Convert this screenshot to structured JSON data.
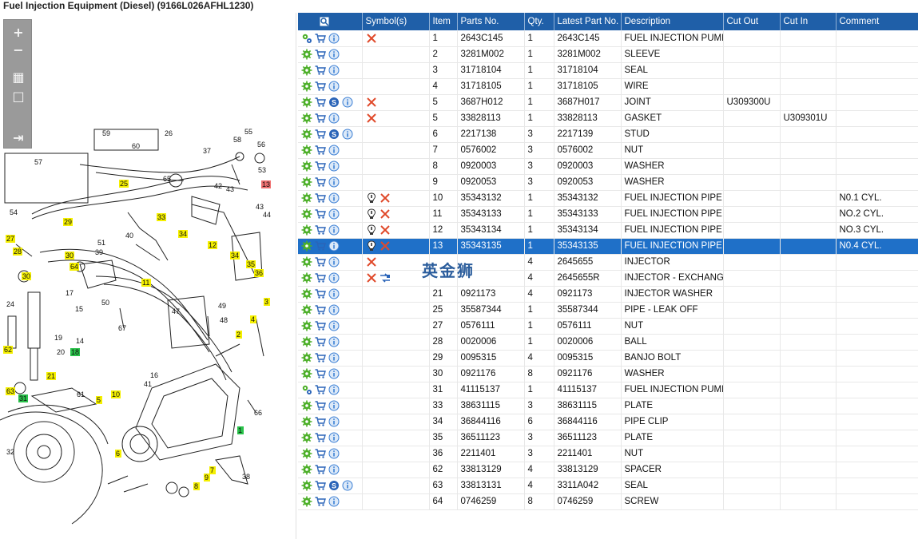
{
  "window": {
    "title": "Fuel Injection Equipment (Diesel) (9166L026AFHL1230)"
  },
  "toolbar": {
    "zoom_in": "+",
    "zoom_out": "−",
    "fit": "▦",
    "actual": "□",
    "export": "⇥"
  },
  "diagram": {
    "callouts": [
      {
        "n": "59",
        "c": "white"
      },
      {
        "n": "60",
        "c": "white"
      },
      {
        "n": "26",
        "c": "white"
      },
      {
        "n": "55",
        "c": "white"
      },
      {
        "n": "56",
        "c": "white"
      },
      {
        "n": "37",
        "c": "white"
      },
      {
        "n": "58",
        "c": "white"
      },
      {
        "n": "57",
        "c": "white"
      },
      {
        "n": "65",
        "c": "white"
      },
      {
        "n": "53",
        "c": "white"
      },
      {
        "n": "25",
        "c": "yellow"
      },
      {
        "n": "42",
        "c": "white"
      },
      {
        "n": "43",
        "c": "white"
      },
      {
        "n": "13",
        "c": "red"
      },
      {
        "n": "43",
        "c": "white"
      },
      {
        "n": "44",
        "c": "white"
      },
      {
        "n": "54",
        "c": "white"
      },
      {
        "n": "29",
        "c": "yellow"
      },
      {
        "n": "33",
        "c": "yellow"
      },
      {
        "n": "40",
        "c": "white"
      },
      {
        "n": "34",
        "c": "yellow"
      },
      {
        "n": "27",
        "c": "yellow"
      },
      {
        "n": "28",
        "c": "yellow"
      },
      {
        "n": "51",
        "c": "white"
      },
      {
        "n": "39",
        "c": "white"
      },
      {
        "n": "12",
        "c": "yellow"
      },
      {
        "n": "30",
        "c": "yellow"
      },
      {
        "n": "64",
        "c": "yellow"
      },
      {
        "n": "34",
        "c": "yellow"
      },
      {
        "n": "35",
        "c": "yellow"
      },
      {
        "n": "36",
        "c": "yellow"
      },
      {
        "n": "30",
        "c": "yellow"
      },
      {
        "n": "11",
        "c": "yellow"
      },
      {
        "n": "17",
        "c": "white"
      },
      {
        "n": "24",
        "c": "white"
      },
      {
        "n": "50",
        "c": "white"
      },
      {
        "n": "3",
        "c": "yellow"
      },
      {
        "n": "49",
        "c": "white"
      },
      {
        "n": "15",
        "c": "white"
      },
      {
        "n": "47",
        "c": "white"
      },
      {
        "n": "48",
        "c": "white"
      },
      {
        "n": "4",
        "c": "yellow"
      },
      {
        "n": "67",
        "c": "white"
      },
      {
        "n": "19",
        "c": "white"
      },
      {
        "n": "2",
        "c": "yellow"
      },
      {
        "n": "14",
        "c": "white"
      },
      {
        "n": "20",
        "c": "white"
      },
      {
        "n": "62",
        "c": "yellow"
      },
      {
        "n": "18",
        "c": "green"
      },
      {
        "n": "21",
        "c": "yellow"
      },
      {
        "n": "16",
        "c": "white"
      },
      {
        "n": "63",
        "c": "yellow"
      },
      {
        "n": "41",
        "c": "white"
      },
      {
        "n": "61",
        "c": "white"
      },
      {
        "n": "10",
        "c": "yellow"
      },
      {
        "n": "31",
        "c": "green"
      },
      {
        "n": "5",
        "c": "yellow"
      },
      {
        "n": "66",
        "c": "white"
      },
      {
        "n": "1",
        "c": "green"
      },
      {
        "n": "32",
        "c": "white"
      },
      {
        "n": "6",
        "c": "yellow"
      },
      {
        "n": "7",
        "c": "yellow"
      },
      {
        "n": "9",
        "c": "yellow"
      },
      {
        "n": "8",
        "c": "yellow"
      },
      {
        "n": "38",
        "c": "white"
      }
    ]
  },
  "table": {
    "columns": [
      "",
      "Symbol(s)",
      "Item",
      "Parts No.",
      "Qty.",
      "Latest Part No.",
      "Description",
      "Cut Out",
      "Cut In",
      "Comment"
    ],
    "rows": [
      {
        "icons": [
          "gears",
          "cart",
          "info"
        ],
        "symbols": [
          "x"
        ],
        "item": "1",
        "part": "2643C145",
        "qty": "1",
        "latest": "2643C145",
        "desc": "FUEL INJECTION PUMP",
        "cutout": "",
        "cutin": "",
        "comment": ""
      },
      {
        "icons": [
          "gear",
          "cart",
          "info"
        ],
        "symbols": [],
        "item": "2",
        "part": "3281M002",
        "qty": "1",
        "latest": "3281M002",
        "desc": "SLEEVE",
        "cutout": "",
        "cutin": "",
        "comment": ""
      },
      {
        "icons": [
          "gear",
          "cart",
          "info"
        ],
        "symbols": [],
        "item": "3",
        "part": "31718104",
        "qty": "1",
        "latest": "31718104",
        "desc": "SEAL",
        "cutout": "",
        "cutin": "",
        "comment": ""
      },
      {
        "icons": [
          "gear",
          "cart",
          "info"
        ],
        "symbols": [],
        "item": "4",
        "part": "31718105",
        "qty": "1",
        "latest": "31718105",
        "desc": "WIRE",
        "cutout": "",
        "cutin": "",
        "comment": ""
      },
      {
        "icons": [
          "gear",
          "cart",
          "s",
          "info"
        ],
        "symbols": [
          "x"
        ],
        "item": "5",
        "part": "3687H012",
        "qty": "1",
        "latest": "3687H017",
        "desc": "JOINT",
        "cutout": "U309300U",
        "cutin": "",
        "comment": ""
      },
      {
        "icons": [
          "gear",
          "cart",
          "info"
        ],
        "symbols": [
          "x"
        ],
        "item": "5",
        "part": "33828113",
        "qty": "1",
        "latest": "33828113",
        "desc": "GASKET",
        "cutout": "",
        "cutin": "U309301U",
        "comment": ""
      },
      {
        "icons": [
          "gear",
          "cart",
          "s",
          "info"
        ],
        "symbols": [],
        "item": "6",
        "part": "2217138",
        "qty": "3",
        "latest": "2217139",
        "desc": "STUD",
        "cutout": "",
        "cutin": "",
        "comment": ""
      },
      {
        "icons": [
          "gear",
          "cart",
          "info"
        ],
        "symbols": [],
        "item": "7",
        "part": "0576002",
        "qty": "3",
        "latest": "0576002",
        "desc": "NUT",
        "cutout": "",
        "cutin": "",
        "comment": ""
      },
      {
        "icons": [
          "gear",
          "cart",
          "info"
        ],
        "symbols": [],
        "item": "8",
        "part": "0920003",
        "qty": "3",
        "latest": "0920003",
        "desc": "WASHER",
        "cutout": "",
        "cutin": "",
        "comment": ""
      },
      {
        "icons": [
          "gear",
          "cart",
          "info"
        ],
        "symbols": [],
        "item": "9",
        "part": "0920053",
        "qty": "3",
        "latest": "0920053",
        "desc": "WASHER",
        "cutout": "",
        "cutin": "",
        "comment": ""
      },
      {
        "icons": [
          "gear",
          "cart",
          "info"
        ],
        "symbols": [
          "bulb",
          "x"
        ],
        "item": "10",
        "part": "35343132",
        "qty": "1",
        "latest": "35343132",
        "desc": "FUEL INJECTION PIPE",
        "cutout": "",
        "cutin": "",
        "comment": "N0.1 CYL."
      },
      {
        "icons": [
          "gear",
          "cart",
          "info"
        ],
        "symbols": [
          "bulb",
          "x"
        ],
        "item": "11",
        "part": "35343133",
        "qty": "1",
        "latest": "35343133",
        "desc": "FUEL INJECTION PIPE",
        "cutout": "",
        "cutin": "",
        "comment": "NO.2 CYL."
      },
      {
        "icons": [
          "gear",
          "cart",
          "info"
        ],
        "symbols": [
          "bulb",
          "x"
        ],
        "item": "12",
        "part": "35343134",
        "qty": "1",
        "latest": "35343134",
        "desc": "FUEL INJECTION PIPE",
        "cutout": "",
        "cutin": "",
        "comment": "NO.3 CYL."
      },
      {
        "icons": [
          "gear",
          "cart",
          "info"
        ],
        "symbols": [
          "bulb",
          "x"
        ],
        "item": "13",
        "part": "35343135",
        "qty": "1",
        "latest": "35343135",
        "desc": "FUEL INJECTION PIPE",
        "cutout": "",
        "cutin": "",
        "comment": "N0.4 CYL.",
        "selected": true
      },
      {
        "icons": [
          "gear",
          "cart",
          "info"
        ],
        "symbols": [
          "x"
        ],
        "item": "",
        "part": "",
        "qty": "4",
        "latest": "2645655",
        "desc": "INJECTOR",
        "cutout": "",
        "cutin": "",
        "comment": ""
      },
      {
        "icons": [
          "gear",
          "cart",
          "info"
        ],
        "symbols": [
          "x",
          "exchange"
        ],
        "item": "",
        "part": "",
        "qty": "4",
        "latest": "2645655R",
        "desc": "INJECTOR - EXCHANGE",
        "cutout": "",
        "cutin": "",
        "comment": ""
      },
      {
        "icons": [
          "gear",
          "cart",
          "info"
        ],
        "symbols": [],
        "item": "21",
        "part": "0921173",
        "qty": "4",
        "latest": "0921173",
        "desc": "INJECTOR WASHER",
        "cutout": "",
        "cutin": "",
        "comment": ""
      },
      {
        "icons": [
          "gear",
          "cart",
          "info"
        ],
        "symbols": [],
        "item": "25",
        "part": "35587344",
        "qty": "1",
        "latest": "35587344",
        "desc": "PIPE - LEAK OFF",
        "cutout": "",
        "cutin": "",
        "comment": ""
      },
      {
        "icons": [
          "gear",
          "cart",
          "info"
        ],
        "symbols": [],
        "item": "27",
        "part": "0576111",
        "qty": "1",
        "latest": "0576111",
        "desc": "NUT",
        "cutout": "",
        "cutin": "",
        "comment": ""
      },
      {
        "icons": [
          "gear",
          "cart",
          "info"
        ],
        "symbols": [],
        "item": "28",
        "part": "0020006",
        "qty": "1",
        "latest": "0020006",
        "desc": "BALL",
        "cutout": "",
        "cutin": "",
        "comment": ""
      },
      {
        "icons": [
          "gear",
          "cart",
          "info"
        ],
        "symbols": [],
        "item": "29",
        "part": "0095315",
        "qty": "4",
        "latest": "0095315",
        "desc": "BANJO BOLT",
        "cutout": "",
        "cutin": "",
        "comment": ""
      },
      {
        "icons": [
          "gear",
          "cart",
          "info"
        ],
        "symbols": [],
        "item": "30",
        "part": "0921176",
        "qty": "8",
        "latest": "0921176",
        "desc": "WASHER",
        "cutout": "",
        "cutin": "",
        "comment": ""
      },
      {
        "icons": [
          "gears",
          "cart",
          "info"
        ],
        "symbols": [],
        "item": "31",
        "part": "41115137",
        "qty": "1",
        "latest": "41115137",
        "desc": "FUEL INJECTION PUMP G",
        "cutout": "",
        "cutin": "",
        "comment": ""
      },
      {
        "icons": [
          "gear",
          "cart",
          "info"
        ],
        "symbols": [],
        "item": "33",
        "part": "38631115",
        "qty": "3",
        "latest": "38631115",
        "desc": "PLATE",
        "cutout": "",
        "cutin": "",
        "comment": ""
      },
      {
        "icons": [
          "gear",
          "cart",
          "info"
        ],
        "symbols": [],
        "item": "34",
        "part": "36844116",
        "qty": "6",
        "latest": "36844116",
        "desc": "PIPE CLIP",
        "cutout": "",
        "cutin": "",
        "comment": ""
      },
      {
        "icons": [
          "gear",
          "cart",
          "info"
        ],
        "symbols": [],
        "item": "35",
        "part": "36511123",
        "qty": "3",
        "latest": "36511123",
        "desc": "PLATE",
        "cutout": "",
        "cutin": "",
        "comment": ""
      },
      {
        "icons": [
          "gear",
          "cart",
          "info"
        ],
        "symbols": [],
        "item": "36",
        "part": "2211401",
        "qty": "3",
        "latest": "2211401",
        "desc": "NUT",
        "cutout": "",
        "cutin": "",
        "comment": ""
      },
      {
        "icons": [
          "gear",
          "cart",
          "info"
        ],
        "symbols": [],
        "item": "62",
        "part": "33813129",
        "qty": "4",
        "latest": "33813129",
        "desc": "SPACER",
        "cutout": "",
        "cutin": "",
        "comment": ""
      },
      {
        "icons": [
          "gear",
          "cart",
          "s",
          "info"
        ],
        "symbols": [],
        "item": "63",
        "part": "33813131",
        "qty": "4",
        "latest": "3311A042",
        "desc": "SEAL",
        "cutout": "",
        "cutin": "",
        "comment": ""
      },
      {
        "icons": [
          "gear",
          "cart",
          "info"
        ],
        "symbols": [],
        "item": "64",
        "part": "0746259",
        "qty": "8",
        "latest": "0746259",
        "desc": "SCREW",
        "cutout": "",
        "cutin": "",
        "comment": ""
      }
    ]
  },
  "watermark": "英金狮",
  "colors": {
    "header": "#1f5fa8",
    "selected": "#1f70c8",
    "gear": "#4caf28",
    "cart": "#2a64b8",
    "info": "#3b7fd4",
    "x": "#e0492a",
    "callout_yellow": "#f5f000",
    "callout_green": "#29c24a",
    "callout_red": "#f07070"
  }
}
